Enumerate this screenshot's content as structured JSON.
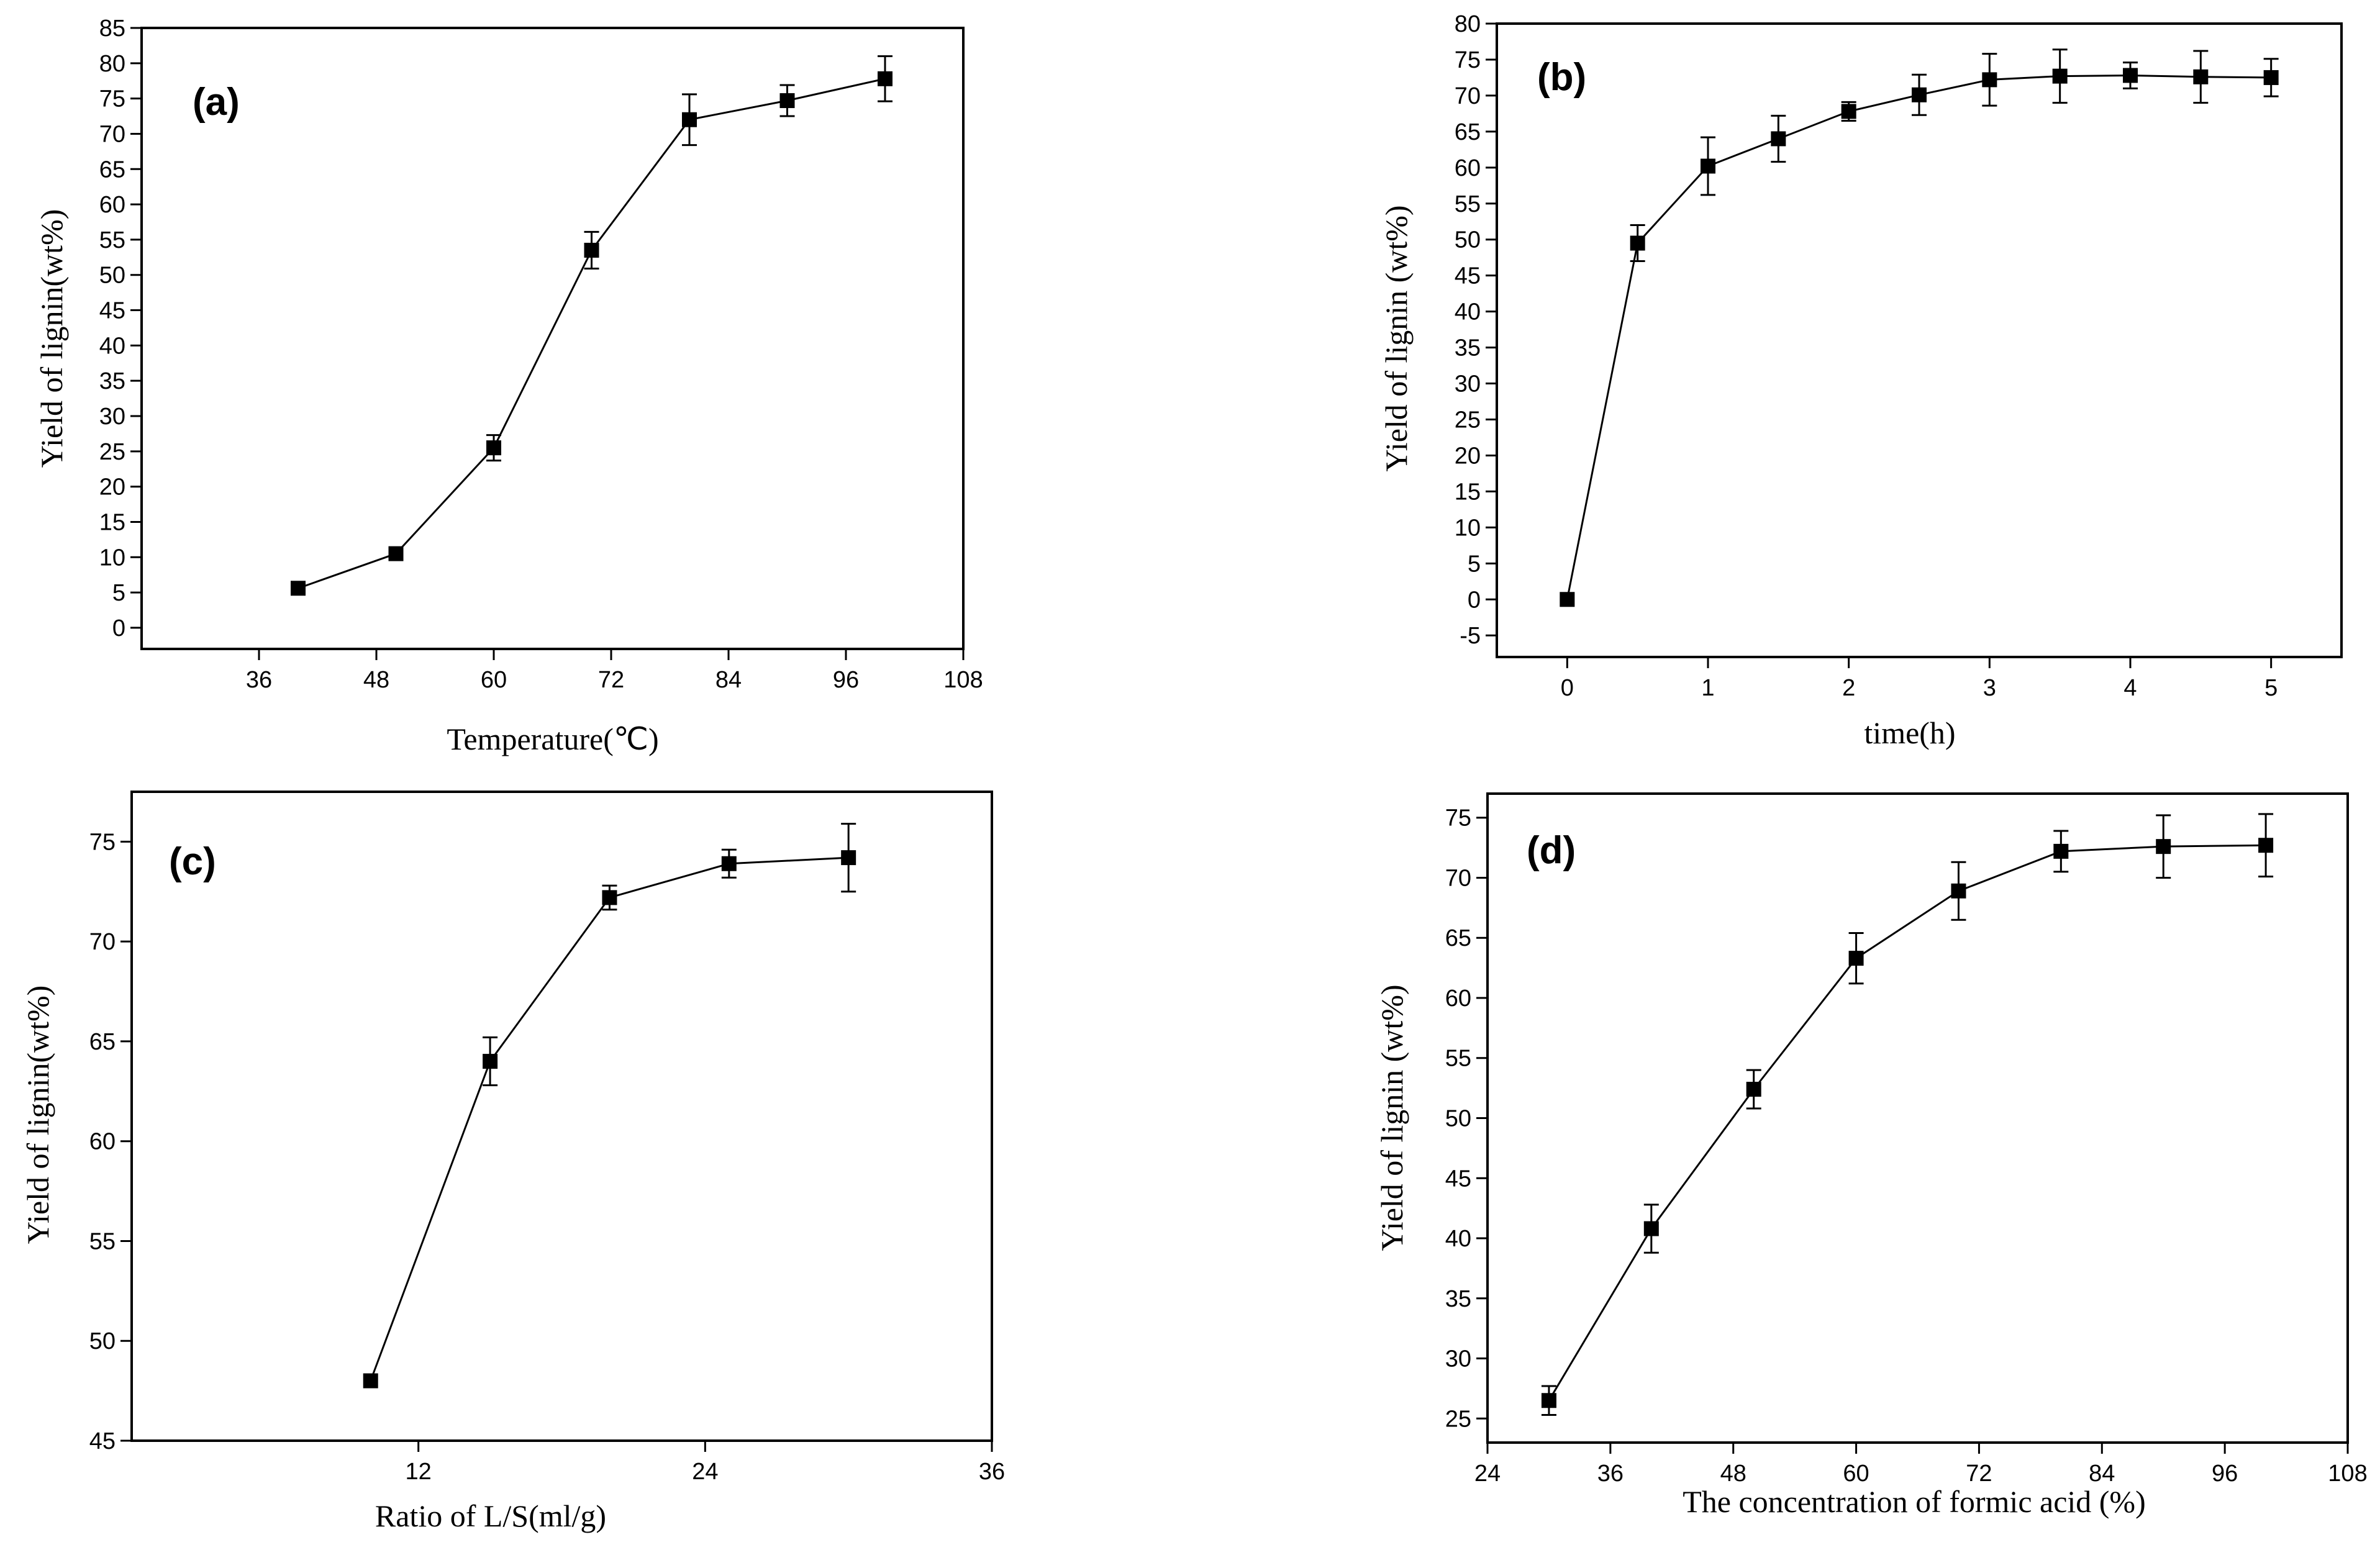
{
  "chart_data": [
    {
      "type": "line",
      "panel_label": "(a)",
      "xlabel": "Temperature(℃)",
      "ylabel": "Yield of lignin(wt%)",
      "xlim": [
        24,
        108
      ],
      "ylim": [
        -3,
        85
      ],
      "x_ticks": [
        "36",
        "48",
        "60",
        "72",
        "84",
        "96",
        "108"
      ],
      "y_ticks": [
        "0",
        "5",
        "10",
        "15",
        "20",
        "25",
        "30",
        "35",
        "40",
        "45",
        "50",
        "55",
        "60",
        "65",
        "70",
        "75",
        "80",
        "85"
      ],
      "series": [
        {
          "name": "lignin yield",
          "x": [
            40,
            50,
            60,
            70,
            80,
            90,
            100
          ],
          "y": [
            5.6,
            10.5,
            25.5,
            53.5,
            72.0,
            74.7,
            77.8
          ],
          "error": [
            0,
            0,
            1.8,
            2.6,
            3.6,
            2.2,
            3.2
          ]
        }
      ]
    },
    {
      "type": "line",
      "panel_label": "(b)",
      "xlabel": "time(h)",
      "ylabel": "Yield of lignin (wt%)",
      "xlim": [
        -0.5,
        5.5
      ],
      "ylim": [
        -8,
        80
      ],
      "x_ticks": [
        "0",
        "1",
        "2",
        "3",
        "4",
        "5"
      ],
      "y_ticks": [
        "-5",
        "0",
        "5",
        "10",
        "15",
        "20",
        "25",
        "30",
        "35",
        "40",
        "45",
        "50",
        "55",
        "60",
        "65",
        "70",
        "75",
        "80"
      ],
      "series": [
        {
          "name": "lignin yield",
          "x": [
            0,
            0.5,
            1.0,
            1.5,
            2.0,
            2.5,
            3.0,
            3.5,
            4.0,
            4.5,
            5.0
          ],
          "y": [
            0,
            49.5,
            60.2,
            64.0,
            67.8,
            70.1,
            72.2,
            72.7,
            72.8,
            72.6,
            72.5
          ],
          "error": [
            0,
            2.5,
            4.0,
            3.2,
            1.3,
            2.8,
            3.6,
            3.7,
            1.8,
            3.6,
            2.6
          ]
        }
      ]
    },
    {
      "type": "line",
      "panel_label": "(c)",
      "xlabel": "Ratio of L/S(ml/g)",
      "ylabel": "Yield of lignin(wt%)",
      "xlim": [
        0,
        36
      ],
      "ylim": [
        45,
        77.5
      ],
      "x_ticks": [
        "12",
        "24",
        "36"
      ],
      "y_ticks": [
        "45",
        "50",
        "55",
        "60",
        "65",
        "70",
        "75"
      ],
      "series": [
        {
          "name": "lignin yield",
          "x": [
            10,
            15,
            20,
            25,
            30
          ],
          "y": [
            48.0,
            64.0,
            72.2,
            73.9,
            74.2
          ],
          "error": [
            0,
            1.2,
            0.6,
            0.7,
            1.7
          ]
        }
      ]
    },
    {
      "type": "line",
      "panel_label": "(d)",
      "xlabel": "The concentration of formic acid (%)",
      "ylabel": "Yield of lignin (wt%)",
      "xlim": [
        24,
        108
      ],
      "ylim": [
        23,
        77
      ],
      "x_ticks": [
        "24",
        "36",
        "48",
        "60",
        "72",
        "84",
        "96",
        "108"
      ],
      "y_ticks": [
        "25",
        "30",
        "35",
        "40",
        "45",
        "50",
        "55",
        "60",
        "65",
        "70",
        "75"
      ],
      "series": [
        {
          "name": "lignin yield",
          "x": [
            30,
            40,
            50,
            60,
            70,
            80,
            90,
            100
          ],
          "y": [
            26.5,
            40.8,
            52.4,
            63.3,
            68.9,
            72.2,
            72.6,
            72.7
          ],
          "error": [
            1.2,
            2.0,
            1.6,
            2.1,
            2.4,
            1.7,
            2.6,
            2.6
          ]
        }
      ]
    }
  ]
}
